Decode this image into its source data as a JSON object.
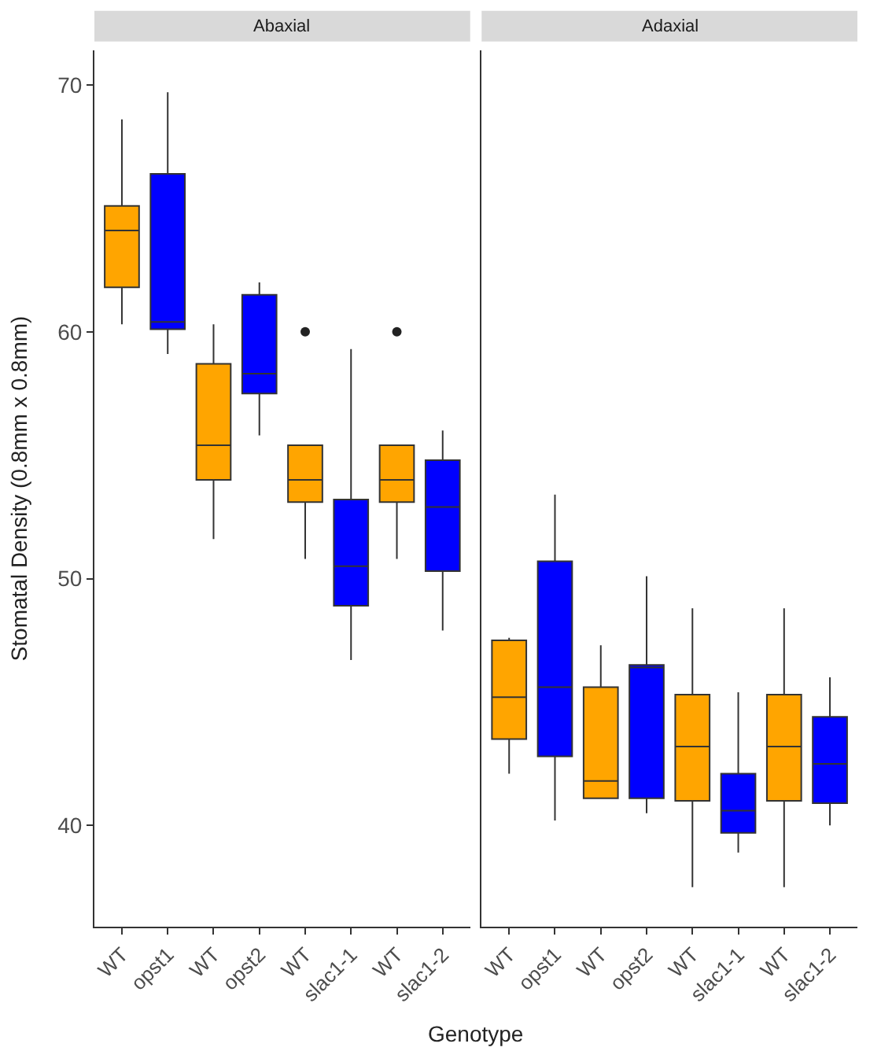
{
  "chart_data": [
    {
      "type": "box",
      "title": "Abaxial",
      "ylabel": "Stomatal Density (0.8mm x 0.8mm)",
      "xlabel": "Genotype",
      "categories": [
        "WT",
        "opst1",
        "WT",
        "opst2",
        "WT",
        "slac1-1",
        "WT",
        "slac1-2"
      ],
      "colors": [
        "#ffa500",
        "#0000ff",
        "#ffa500",
        "#0000ff",
        "#ffa500",
        "#0000ff",
        "#ffa500",
        "#0000ff"
      ],
      "boxes": [
        {
          "low": 60.3,
          "q1": 61.8,
          "median": 64.1,
          "q3": 65.1,
          "high": 68.6
        },
        {
          "low": 59.1,
          "q1": 60.1,
          "median": 60.4,
          "q3": 66.4,
          "high": 69.7
        },
        {
          "low": 51.6,
          "q1": 54.0,
          "median": 55.4,
          "q3": 58.7,
          "high": 60.3
        },
        {
          "low": 55.8,
          "q1": 57.5,
          "median": 58.3,
          "q3": 61.5,
          "high": 62.0
        },
        {
          "low": 50.8,
          "q1": 53.1,
          "median": 54.0,
          "q3": 55.4,
          "high": 55.4,
          "outliers": [
            60.0
          ]
        },
        {
          "low": 46.7,
          "q1": 48.9,
          "median": 50.5,
          "q3": 53.2,
          "high": 59.3
        },
        {
          "low": 50.8,
          "q1": 53.1,
          "median": 54.0,
          "q3": 55.4,
          "high": 55.4,
          "outliers": [
            60.0
          ]
        },
        {
          "low": 47.9,
          "q1": 50.3,
          "median": 52.9,
          "q3": 54.8,
          "high": 56.0
        }
      ],
      "ylim": [
        35.9,
        71.4
      ],
      "yticks": [
        40,
        50,
        60,
        70
      ]
    },
    {
      "type": "box",
      "title": "Adaxial",
      "categories": [
        "WT",
        "opst1",
        "WT",
        "opst2",
        "WT",
        "slac1-1",
        "WT",
        "slac1-2"
      ],
      "colors": [
        "#ffa500",
        "#0000ff",
        "#ffa500",
        "#0000ff",
        "#ffa500",
        "#0000ff",
        "#ffa500",
        "#0000ff"
      ],
      "boxes": [
        {
          "low": 42.1,
          "q1": 43.5,
          "median": 45.2,
          "q3": 47.5,
          "high": 47.6
        },
        {
          "low": 40.2,
          "q1": 42.8,
          "median": 45.6,
          "q3": 50.7,
          "high": 53.4
        },
        {
          "low": 41.1,
          "q1": 41.1,
          "median": 41.8,
          "q3": 45.6,
          "high": 47.3
        },
        {
          "low": 40.5,
          "q1": 41.1,
          "median": 46.4,
          "q3": 46.5,
          "high": 50.1
        },
        {
          "low": 37.5,
          "q1": 41.0,
          "median": 43.2,
          "q3": 45.3,
          "high": 48.8
        },
        {
          "low": 38.9,
          "q1": 39.7,
          "median": 40.6,
          "q3": 42.1,
          "high": 45.4
        },
        {
          "low": 37.5,
          "q1": 41.0,
          "median": 43.2,
          "q3": 45.3,
          "high": 48.8
        },
        {
          "low": 40.0,
          "q1": 40.9,
          "median": 42.5,
          "q3": 44.4,
          "high": 46.0
        }
      ],
      "ylim": [
        35.9,
        71.4
      ],
      "yticks": [
        40,
        50,
        60,
        70
      ],
      "tick_labels": "x"
    }
  ]
}
